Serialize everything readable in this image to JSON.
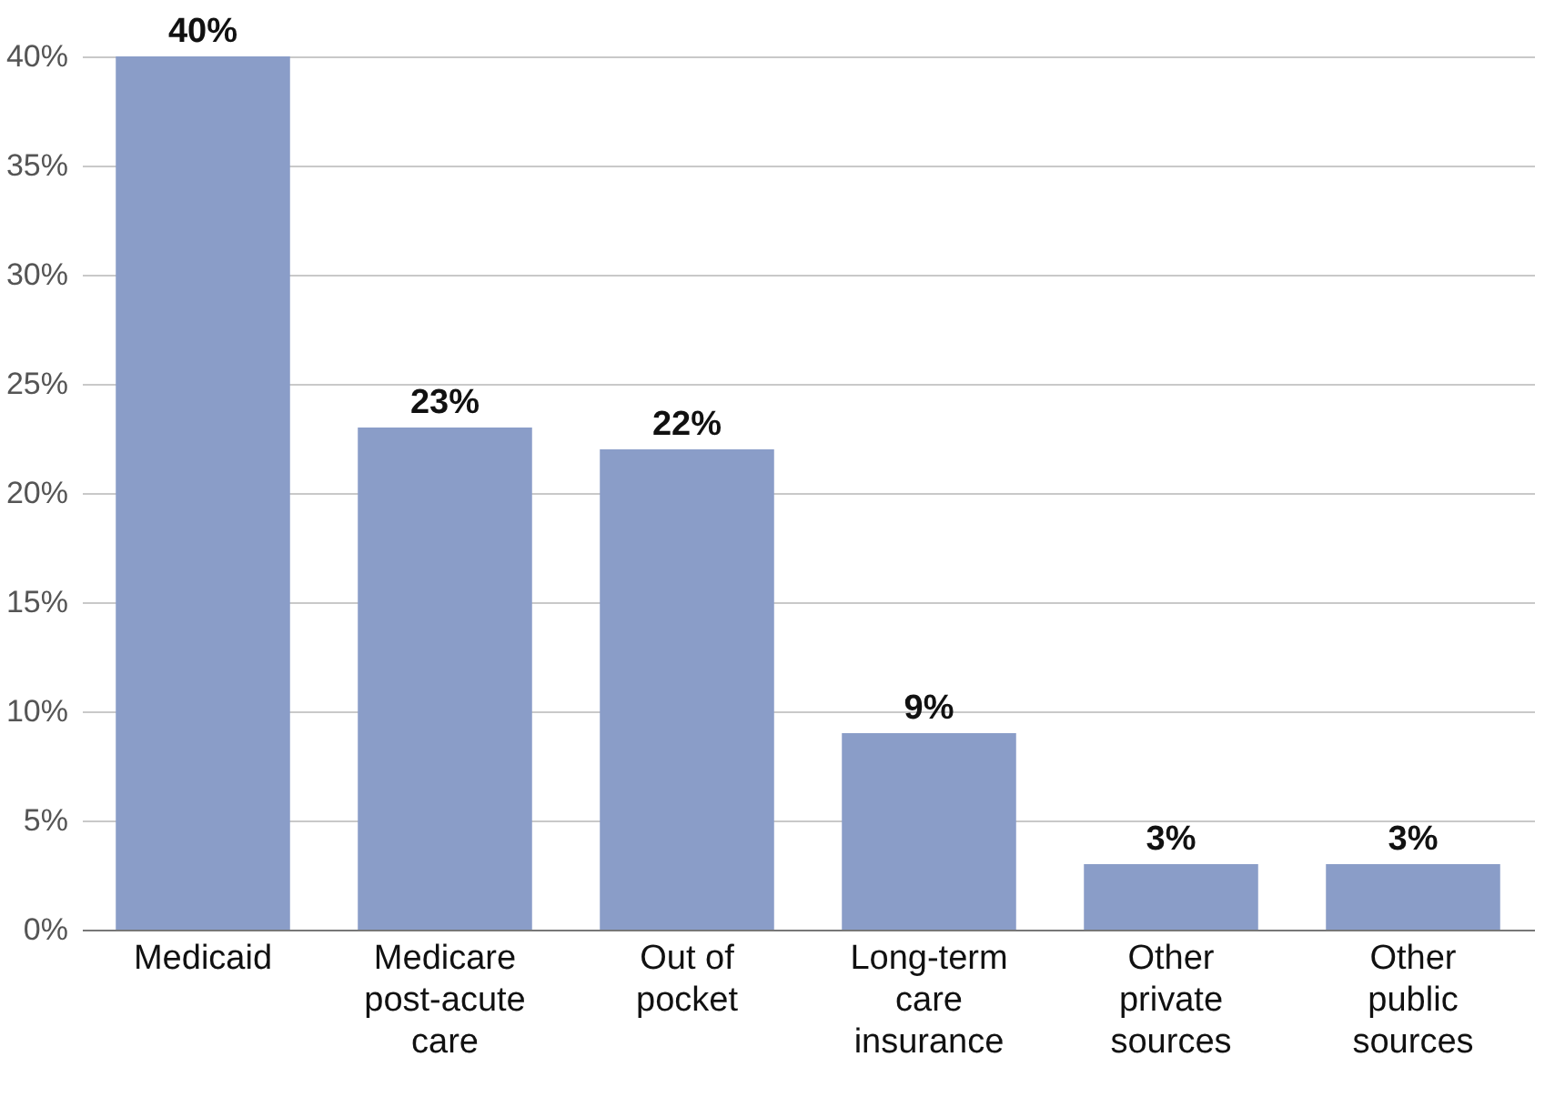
{
  "chart_data": {
    "type": "bar",
    "categories": [
      "Medicaid",
      "Medicare post-acute care",
      "Out of pocket",
      "Long-term care insurance",
      "Other private sources",
      "Other public sources"
    ],
    "values": [
      40,
      23,
      22,
      9,
      3,
      3
    ],
    "value_labels": [
      "40%",
      "23%",
      "22%",
      "9%",
      "3%",
      "3%"
    ],
    "color": "#8a9dc8",
    "ylim": [
      0,
      40
    ],
    "yticks": [
      {
        "value": 0,
        "label": "0%"
      },
      {
        "value": 5,
        "label": "5%"
      },
      {
        "value": 10,
        "label": "10%"
      },
      {
        "value": 15,
        "label": "15%"
      },
      {
        "value": 20,
        "label": "20%"
      },
      {
        "value": 25,
        "label": "25%"
      },
      {
        "value": 30,
        "label": "30%"
      },
      {
        "value": 35,
        "label": "35%"
      },
      {
        "value": 40,
        "label": "40%"
      }
    ],
    "grid": "y"
  }
}
